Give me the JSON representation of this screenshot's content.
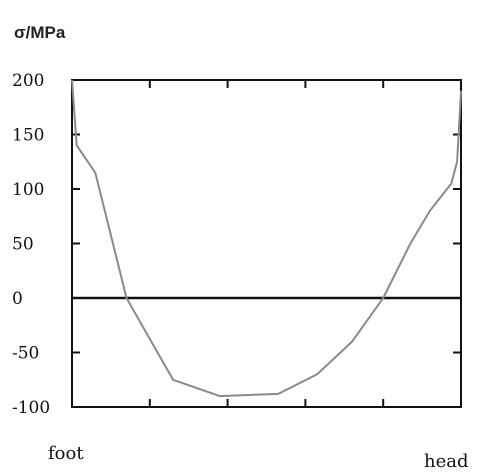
{
  "chart_data": {
    "type": "line",
    "title": "",
    "ylabel": "σ/MPa",
    "xlabel": "",
    "x_start_label": "foot",
    "x_end_label": "head",
    "xlim": [
      0,
      1
    ],
    "ylim": [
      -100,
      200
    ],
    "yticks": [
      200,
      150,
      100,
      50,
      0,
      -50,
      -100
    ],
    "xtick_count": 4,
    "zero_line": true,
    "grid": false,
    "series": [
      {
        "color": "#8a8a8a",
        "x": [
          0.0,
          0.012,
          0.06,
          0.14,
          0.26,
          0.38,
          0.53,
          0.63,
          0.72,
          0.8,
          0.87,
          0.92,
          0.975,
          0.99,
          1.0
        ],
        "y": [
          200,
          140,
          115,
          0,
          -75,
          -90,
          -88,
          -70,
          -40,
          0,
          50,
          80,
          105,
          125,
          190
        ]
      }
    ]
  }
}
